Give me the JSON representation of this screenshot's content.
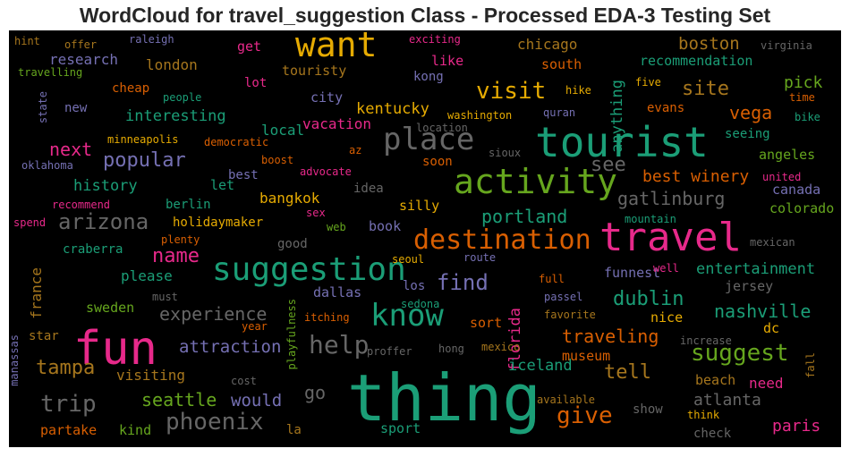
{
  "chart_data": {
    "type": "wordcloud",
    "title": "WordCloud for travel_suggestion Class - Processed EDA-3 Testing Set",
    "background": "#000000",
    "palette": [
      "#1b9e77",
      "#d95f02",
      "#7570b3",
      "#e7298a",
      "#66a61e",
      "#e6ab02",
      "#a6761d",
      "#666666"
    ],
    "words": [
      {
        "text": "thing",
        "weight": 72,
        "color": "#1b9e77"
      },
      {
        "text": "fun",
        "weight": 52,
        "color": "#e7298a"
      },
      {
        "text": "tourist",
        "weight": 46,
        "color": "#1b9e77"
      },
      {
        "text": "travel",
        "weight": 44,
        "color": "#e7298a"
      },
      {
        "text": "want",
        "weight": 38,
        "color": "#e6ab02"
      },
      {
        "text": "activity",
        "weight": 38,
        "color": "#66a61e"
      },
      {
        "text": "suggestion",
        "weight": 36,
        "color": "#1b9e77"
      },
      {
        "text": "place",
        "weight": 34,
        "color": "#666666"
      },
      {
        "text": "know",
        "weight": 34,
        "color": "#1b9e77"
      },
      {
        "text": "destination",
        "weight": 30,
        "color": "#d95f02"
      },
      {
        "text": "help",
        "weight": 28,
        "color": "#666666"
      },
      {
        "text": "visit",
        "weight": 26,
        "color": "#e6ab02"
      },
      {
        "text": "phoenix",
        "weight": 26,
        "color": "#666666"
      },
      {
        "text": "suggest",
        "weight": 26,
        "color": "#66a61e"
      },
      {
        "text": "trip",
        "weight": 26,
        "color": "#666666"
      },
      {
        "text": "give",
        "weight": 26,
        "color": "#d95f02"
      },
      {
        "text": "find",
        "weight": 24,
        "color": "#7570b3"
      },
      {
        "text": "arizona",
        "weight": 24,
        "color": "#666666"
      },
      {
        "text": "tampa",
        "weight": 22,
        "color": "#a6761d"
      },
      {
        "text": "tell",
        "weight": 22,
        "color": "#a6761d"
      },
      {
        "text": "dublin",
        "weight": 22,
        "color": "#1b9e77"
      },
      {
        "text": "popular",
        "weight": 22,
        "color": "#7570b3"
      },
      {
        "text": "name",
        "weight": 22,
        "color": "#e7298a"
      },
      {
        "text": "see",
        "weight": 22,
        "color": "#666666"
      },
      {
        "text": "site",
        "weight": 22,
        "color": "#a6761d"
      },
      {
        "text": "experience",
        "weight": 20,
        "color": "#666666"
      },
      {
        "text": "nashville",
        "weight": 20,
        "color": "#1b9e77"
      },
      {
        "text": "traveling",
        "weight": 20,
        "color": "#d95f02"
      },
      {
        "text": "go",
        "weight": 20,
        "color": "#666666"
      },
      {
        "text": "gatlinburg",
        "weight": 20,
        "color": "#666666"
      },
      {
        "text": "portland",
        "weight": 20,
        "color": "#1b9e77"
      },
      {
        "text": "vega",
        "weight": 20,
        "color": "#d95f02"
      },
      {
        "text": "next",
        "weight": 20,
        "color": "#e7298a"
      },
      {
        "text": "seattle",
        "weight": 20,
        "color": "#66a61e"
      },
      {
        "text": "would",
        "weight": 19,
        "color": "#7570b3"
      },
      {
        "text": "attraction",
        "weight": 19,
        "color": "#7570b3"
      },
      {
        "text": "boston",
        "weight": 19,
        "color": "#a6761d"
      },
      {
        "text": "best winery",
        "weight": 18,
        "color": "#d95f02"
      },
      {
        "text": "paris",
        "weight": 18,
        "color": "#e7298a"
      },
      {
        "text": "atlanta",
        "weight": 18,
        "color": "#666666"
      },
      {
        "text": "pick",
        "weight": 18,
        "color": "#66a61e"
      },
      {
        "text": "want to",
        "weight": 1,
        "color": "#000000"
      },
      {
        "text": "florida",
        "weight": 17,
        "color": "#e7298a"
      },
      {
        "text": "anything",
        "weight": 17,
        "color": "#1b9e77"
      },
      {
        "text": "entertainment",
        "weight": 17,
        "color": "#1b9e77"
      },
      {
        "text": "history",
        "weight": 17,
        "color": "#1b9e77"
      },
      {
        "text": "iceland",
        "weight": 17,
        "color": "#1b9e77"
      },
      {
        "text": "interesting",
        "weight": 17,
        "color": "#1b9e77"
      },
      {
        "text": "kentucky",
        "weight": 17,
        "color": "#e6ab02"
      },
      {
        "text": "visiting",
        "weight": 16,
        "color": "#a6761d"
      },
      {
        "text": "france",
        "weight": 16,
        "color": "#a6761d"
      },
      {
        "text": "chicago",
        "weight": 16,
        "color": "#a6761d"
      },
      {
        "text": "research",
        "weight": 16,
        "color": "#7570b3"
      },
      {
        "text": "vacation",
        "weight": 16,
        "color": "#e7298a"
      },
      {
        "text": "local",
        "weight": 16,
        "color": "#1b9e77"
      },
      {
        "text": "bangkok",
        "weight": 16,
        "color": "#e6ab02"
      },
      {
        "text": "london",
        "weight": 16,
        "color": "#a6761d"
      },
      {
        "text": "need",
        "weight": 16,
        "color": "#e7298a"
      },
      {
        "text": "please",
        "weight": 16,
        "color": "#1b9e77"
      },
      {
        "text": "sweden",
        "weight": 15,
        "color": "#66a61e"
      },
      {
        "text": "sport",
        "weight": 15,
        "color": "#1b9e77"
      },
      {
        "text": "nice",
        "weight": 15,
        "color": "#e6ab02"
      },
      {
        "text": "beach",
        "weight": 15,
        "color": "#a6761d"
      },
      {
        "text": "museum",
        "weight": 15,
        "color": "#d95f02"
      },
      {
        "text": "city",
        "weight": 15,
        "color": "#7570b3"
      },
      {
        "text": "like",
        "weight": 15,
        "color": "#e7298a"
      },
      {
        "text": "canada",
        "weight": 15,
        "color": "#7570b3"
      },
      {
        "text": "colorado",
        "weight": 15,
        "color": "#66a61e"
      },
      {
        "text": "let",
        "weight": 15,
        "color": "#1b9e77"
      },
      {
        "text": "book",
        "weight": 15,
        "color": "#7570b3"
      },
      {
        "text": "silly",
        "weight": 15,
        "color": "#e6ab02"
      },
      {
        "text": "dallas",
        "weight": 15,
        "color": "#7570b3"
      },
      {
        "text": "kind",
        "weight": 15,
        "color": "#66a61e"
      },
      {
        "text": "partake",
        "weight": 15,
        "color": "#d95f02"
      },
      {
        "text": "sort",
        "weight": 15,
        "color": "#d95f02"
      },
      {
        "text": "get",
        "weight": 15,
        "color": "#e7298a"
      },
      {
        "text": "touristy",
        "weight": 15,
        "color": "#a6761d"
      },
      {
        "text": "recommendation",
        "weight": 15,
        "color": "#1b9e77"
      },
      {
        "text": "south",
        "weight": 15,
        "color": "#d95f02"
      },
      {
        "text": "funnest",
        "weight": 15,
        "color": "#7570b3"
      },
      {
        "text": "jersey",
        "weight": 15,
        "color": "#666666"
      },
      {
        "text": "dc",
        "weight": 15,
        "color": "#e6ab02"
      },
      {
        "text": "angeles",
        "weight": 15,
        "color": "#66a61e"
      },
      {
        "text": "seeing",
        "weight": 14,
        "color": "#1b9e77"
      },
      {
        "text": "evans",
        "weight": 14,
        "color": "#d95f02"
      },
      {
        "text": "berlin",
        "weight": 14,
        "color": "#1b9e77"
      },
      {
        "text": "holidaymaker",
        "weight": 14,
        "color": "#e6ab02"
      },
      {
        "text": "best",
        "weight": 14,
        "color": "#7570b3"
      },
      {
        "text": "idea",
        "weight": 14,
        "color": "#666666"
      },
      {
        "text": "craberra",
        "weight": 14,
        "color": "#1b9e77"
      },
      {
        "text": "good",
        "weight": 14,
        "color": "#666666"
      },
      {
        "text": "la",
        "weight": 14,
        "color": "#a6761d"
      },
      {
        "text": "los",
        "weight": 14,
        "color": "#7570b3"
      },
      {
        "text": "show",
        "weight": 14,
        "color": "#666666"
      },
      {
        "text": "check",
        "weight": 14,
        "color": "#666666"
      },
      {
        "text": "star",
        "weight": 14,
        "color": "#a6761d"
      },
      {
        "text": "soon",
        "weight": 14,
        "color": "#d95f02"
      },
      {
        "text": "lot",
        "weight": 14,
        "color": "#e7298a"
      },
      {
        "text": "cheap",
        "weight": 14,
        "color": "#d95f02"
      },
      {
        "text": "new",
        "weight": 14,
        "color": "#7570b3"
      },
      {
        "text": "kong",
        "weight": 14,
        "color": "#7570b3"
      },
      {
        "text": "washington",
        "weight": 12,
        "color": "#e6ab02"
      },
      {
        "text": "minneapolis",
        "weight": 12,
        "color": "#e6ab02"
      },
      {
        "text": "democratic",
        "weight": 12,
        "color": "#d95f02"
      },
      {
        "text": "boost",
        "weight": 12,
        "color": "#d95f02"
      },
      {
        "text": "advocate",
        "weight": 12,
        "color": "#e7298a"
      },
      {
        "text": "recommend",
        "weight": 12,
        "color": "#e7298a"
      },
      {
        "text": "plenty",
        "weight": 12,
        "color": "#d95f02"
      },
      {
        "text": "spend",
        "weight": 12,
        "color": "#e7298a"
      },
      {
        "text": "sex",
        "weight": 12,
        "color": "#e7298a"
      },
      {
        "text": "web",
        "weight": 12,
        "color": "#66a61e"
      },
      {
        "text": "mountain",
        "weight": 12,
        "color": "#1b9e77"
      },
      {
        "text": "mexican",
        "weight": 12,
        "color": "#666666"
      },
      {
        "text": "route",
        "weight": 12,
        "color": "#7570b3"
      },
      {
        "text": "seoul",
        "weight": 12,
        "color": "#e6ab02"
      },
      {
        "text": "well",
        "weight": 12,
        "color": "#e7298a"
      },
      {
        "text": "full",
        "weight": 12,
        "color": "#d95f02"
      },
      {
        "text": "passel",
        "weight": 12,
        "color": "#7570b3"
      },
      {
        "text": "favorite",
        "weight": 12,
        "color": "#a6761d"
      },
      {
        "text": "increase",
        "weight": 12,
        "color": "#666666"
      },
      {
        "text": "sedona",
        "weight": 12,
        "color": "#1b9e77"
      },
      {
        "text": "itching",
        "weight": 12,
        "color": "#d95f02"
      },
      {
        "text": "year",
        "weight": 12,
        "color": "#d95f02"
      },
      {
        "text": "hong",
        "weight": 12,
        "color": "#666666"
      },
      {
        "text": "mexico",
        "weight": 12,
        "color": "#a6761d"
      },
      {
        "text": "proffer",
        "weight": 12,
        "color": "#666666"
      },
      {
        "text": "playfulness",
        "weight": 12,
        "color": "#66a61e"
      },
      {
        "text": "must",
        "weight": 12,
        "color": "#666666"
      },
      {
        "text": "cost",
        "weight": 12,
        "color": "#666666"
      },
      {
        "text": "available",
        "weight": 12,
        "color": "#a6761d"
      },
      {
        "text": "think",
        "weight": 12,
        "color": "#e6ab02"
      },
      {
        "text": "fall",
        "weight": 12,
        "color": "#a6761d"
      },
      {
        "text": "manassas",
        "weight": 12,
        "color": "#7570b3"
      },
      {
        "text": "hint",
        "weight": 12,
        "color": "#a6761d"
      },
      {
        "text": "offer",
        "weight": 12,
        "color": "#a6761d"
      },
      {
        "text": "raleigh",
        "weight": 12,
        "color": "#7570b3"
      },
      {
        "text": "exciting",
        "weight": 12,
        "color": "#e7298a"
      },
      {
        "text": "virginia",
        "weight": 12,
        "color": "#666666"
      },
      {
        "text": "travelling",
        "weight": 12,
        "color": "#66a61e"
      },
      {
        "text": "people",
        "weight": 12,
        "color": "#1b9e77"
      },
      {
        "text": "hike",
        "weight": 12,
        "color": "#e6ab02"
      },
      {
        "text": "five",
        "weight": 12,
        "color": "#e6ab02"
      },
      {
        "text": "time",
        "weight": 12,
        "color": "#d95f02"
      },
      {
        "text": "bike",
        "weight": 12,
        "color": "#1b9e77"
      },
      {
        "text": "state",
        "weight": 12,
        "color": "#7570b3"
      },
      {
        "text": "location",
        "weight": 12,
        "color": "#666666"
      },
      {
        "text": "quran",
        "weight": 12,
        "color": "#7570b3"
      },
      {
        "text": "oklahoma",
        "weight": 12,
        "color": "#7570b3"
      },
      {
        "text": "az",
        "weight": 12,
        "color": "#d95f02"
      },
      {
        "text": "sioux",
        "weight": 12,
        "color": "#666666"
      },
      {
        "text": "united",
        "weight": 12,
        "color": "#e7298a"
      }
    ]
  }
}
